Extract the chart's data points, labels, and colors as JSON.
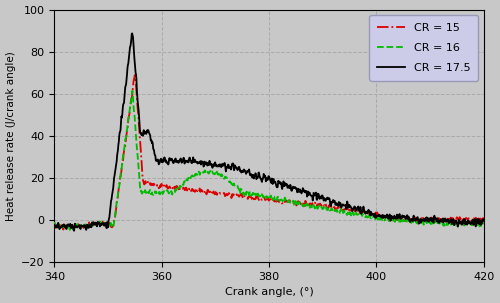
{
  "xlabel": "Crank angle, (°)",
  "ylabel": "Heat release rate (J/crank angle)",
  "xlim": [
    340,
    420
  ],
  "ylim": [
    -20,
    100
  ],
  "xticks": [
    340,
    360,
    380,
    400,
    420
  ],
  "yticks": [
    -20,
    0,
    20,
    40,
    60,
    80,
    100
  ],
  "background_color": "#c8c8c8",
  "legend_bg": "#cccce8",
  "grid_color": "#aaaaaa",
  "cr15_color": "#dd0000",
  "cr16_color": "#00bb00",
  "cr175_color": "#000000",
  "legend_labels": [
    "CR = 15",
    "CR = 16",
    "CR = 17.5"
  ],
  "figwidth": 5.0,
  "figheight": 3.03,
  "dpi": 100
}
